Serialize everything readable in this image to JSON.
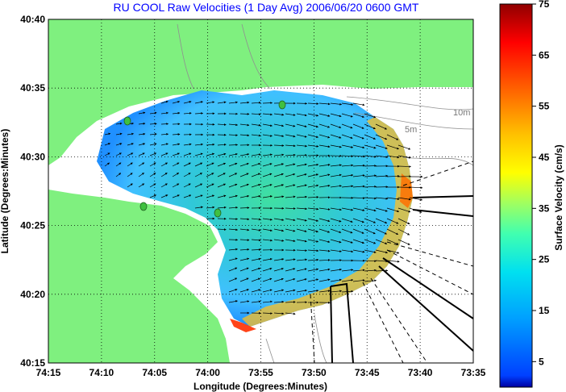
{
  "chart_data": {
    "type": "heatmap",
    "title": "RU COOL Raw Velocities (1 Day Avg) 2006/06/20 0600 GMT",
    "xlabel": "Longitude (Degrees:Minutes)",
    "ylabel": "Latitude (Degrees:Minutes)",
    "x_ticks": [
      "74:15",
      "74:10",
      "74:05",
      "74:00",
      "73:55",
      "73:50",
      "73:45",
      "73:40",
      "73:35"
    ],
    "y_ticks": [
      "40:40",
      "40:35",
      "40:30",
      "40:25",
      "40:20",
      "40:15"
    ],
    "xlim": [
      -74.25,
      -73.5833
    ],
    "ylim": [
      40.25,
      40.6667
    ],
    "grid": true,
    "colorbar": {
      "label": "Surface Velocity (cm/s)",
      "range": [
        0,
        75
      ],
      "ticks": [
        "5",
        "15",
        "25",
        "35",
        "45",
        "55",
        "65",
        "75"
      ]
    },
    "contour_labels": [
      "10m",
      "5m"
    ],
    "colors": {
      "land": "#7ff07f",
      "water": "#ffffff",
      "grid": "#000000",
      "arrows": "#000000"
    }
  }
}
